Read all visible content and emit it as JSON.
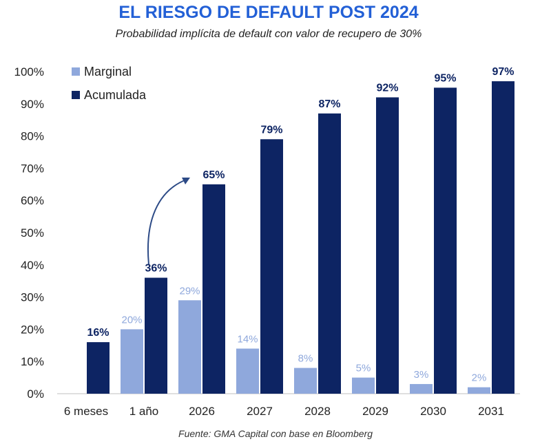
{
  "chart_data": {
    "type": "bar",
    "title": "EL RIESGO DE DEFAULT POST 2024",
    "subtitle": "Probabilidad implícita de default con valor de recupero de 30%",
    "categories": [
      "6 meses",
      "1 año",
      "2026",
      "2027",
      "2028",
      "2029",
      "2030",
      "2031"
    ],
    "series": [
      {
        "name": "Marginal",
        "values": [
          null,
          20,
          29,
          14,
          8,
          5,
          3,
          2
        ],
        "labels": [
          "",
          "20%",
          "29%",
          "14%",
          "8%",
          "5%",
          "3%",
          "2%"
        ]
      },
      {
        "name": "Acumulada",
        "values": [
          16,
          36,
          65,
          79,
          87,
          92,
          95,
          97
        ],
        "labels": [
          "16%",
          "36%",
          "65%",
          "79%",
          "87%",
          "92%",
          "95%",
          "97%"
        ]
      }
    ],
    "y_ticks": [
      "0%",
      "10%",
      "20%",
      "30%",
      "40%",
      "50%",
      "60%",
      "70%",
      "80%",
      "90%",
      "100%"
    ],
    "ylim": [
      0,
      100
    ],
    "xlabel": "",
    "ylabel": "",
    "legend_position": "top-left",
    "annotation": "curved arrow from 1 año to 2026",
    "source": "Fuente: GMA Capital con base en Bloomberg",
    "colors": {
      "title": "#2360d6",
      "marginal": "#8fa8dc",
      "acumulada": "#0d2463",
      "axis": "#bfbfbf",
      "marginal_label": "#8fa8dc",
      "acumulada_label": "#0d2463"
    }
  }
}
